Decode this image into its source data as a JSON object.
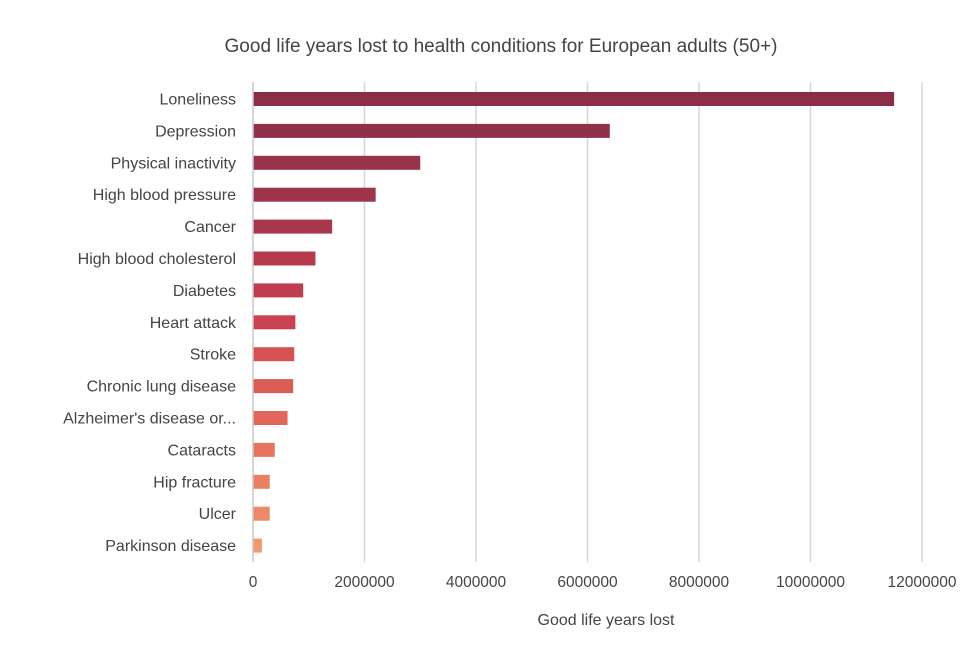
{
  "chart_data": {
    "type": "bar",
    "orientation": "horizontal",
    "title": "Good life years lost to health conditions for European adults (50+)",
    "xlabel": "Good life years lost",
    "ylabel": "",
    "xlim": [
      0,
      12000000
    ],
    "xticks": [
      0,
      2000000,
      4000000,
      6000000,
      8000000,
      10000000,
      12000000
    ],
    "xtick_labels": [
      "0",
      "2000000",
      "4000000",
      "6000000",
      "8000000",
      "10000000",
      "12000000"
    ],
    "grid": "vertical",
    "legend": "none",
    "categories": [
      "Loneliness",
      "Depression",
      "Physical inactivity",
      "High blood pressure",
      "Cancer",
      "High blood cholesterol",
      "Diabetes",
      "Heart attack",
      "Stroke",
      "Chronic lung disease",
      "Alzheimer's disease or...",
      "Cataracts",
      "Hip fracture",
      "Ulcer",
      "Parkinson disease"
    ],
    "values": [
      11500000,
      6400000,
      3000000,
      2200000,
      1420000,
      1120000,
      900000,
      760000,
      740000,
      720000,
      620000,
      390000,
      300000,
      300000,
      160000
    ],
    "colors": [
      "#8b2f48",
      "#8f3149",
      "#983349",
      "#9d344a",
      "#a8374c",
      "#b63a4e",
      "#c03c4f",
      "#ca4150",
      "#d65252",
      "#db5b55",
      "#e2675a",
      "#e8745e",
      "#ec7e62",
      "#ee8966",
      "#f19a6a"
    ]
  }
}
